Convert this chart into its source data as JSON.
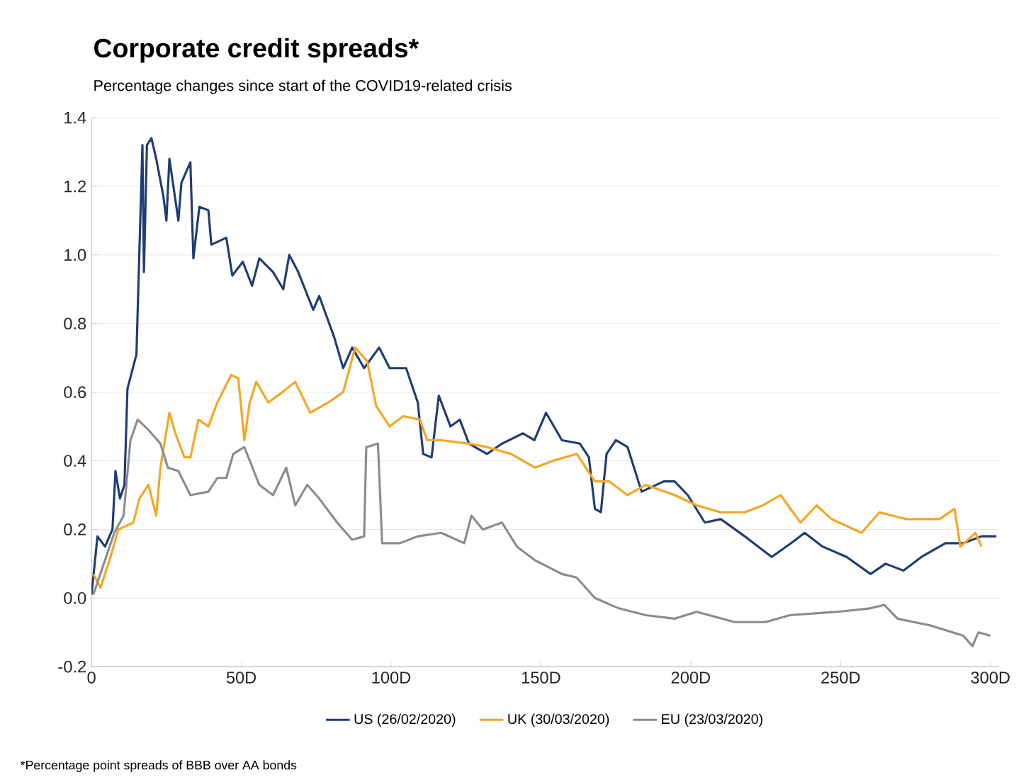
{
  "chart_data": {
    "type": "line",
    "title": "Corporate credit spreads*",
    "subtitle": "Percentage changes since start of the COVID19-related crisis",
    "annotations": [
      "*Percentage point spreads of BBB over AA bonds"
    ],
    "xlim": [
      0,
      303
    ],
    "xticks": [
      {
        "value": 0,
        "label": "0"
      },
      {
        "value": 50,
        "label": "50D"
      },
      {
        "value": 100,
        "label": "100D"
      },
      {
        "value": 150,
        "label": "150D"
      },
      {
        "value": 200,
        "label": "200D"
      },
      {
        "value": 250,
        "label": "250D"
      },
      {
        "value": 300,
        "label": "300D"
      }
    ],
    "ylim": [
      -0.2,
      1.4
    ],
    "yticks": [
      {
        "value": -0.2,
        "label": "-0.2"
      },
      {
        "value": 0,
        "label": "0.0"
      },
      {
        "value": 0.2,
        "label": "0.2"
      },
      {
        "value": 0.4,
        "label": "0.4"
      },
      {
        "value": 0.6,
        "label": "0.6"
      },
      {
        "value": 0.8,
        "label": "0.8"
      },
      {
        "value": 1.0,
        "label": "1.0"
      },
      {
        "value": 1.2,
        "label": "1.2"
      },
      {
        "value": 1.4,
        "label": "1.4"
      }
    ],
    "grid": "y",
    "legend": "bottom",
    "marker": "none",
    "series": [
      {
        "name": "US (26/02/2020)",
        "color": "#1f3d73",
        "x": [
          0,
          2,
          4.5,
          7,
          8,
          9.5,
          11,
          12,
          15,
          17,
          17.5,
          18.5,
          20,
          21.6,
          24,
          25,
          26,
          29,
          30,
          33,
          34,
          36,
          39,
          40,
          45,
          47,
          50.5,
          53.6,
          56,
          60.6,
          64,
          66,
          69,
          74,
          76,
          81,
          84,
          87,
          91,
          96,
          99.5,
          105,
          108.9,
          110.7,
          113.5,
          115.9,
          119.8,
          122.9,
          126,
          132,
          137,
          144,
          147.8,
          151.7,
          157,
          163,
          166,
          168,
          170,
          171.9,
          175,
          178.9,
          183.6,
          191,
          194.6,
          199,
          204.7,
          210,
          218,
          227,
          233.5,
          238,
          244,
          252,
          260,
          265,
          271,
          277,
          285,
          291,
          297,
          302
        ],
        "values": [
          0.01,
          0.18,
          0.15,
          0.2,
          0.37,
          0.29,
          0.33,
          0.61,
          0.71,
          1.32,
          0.95,
          1.32,
          1.34,
          1.28,
          1.17,
          1.1,
          1.28,
          1.1,
          1.21,
          1.27,
          0.99,
          1.14,
          1.13,
          1.03,
          1.05,
          0.94,
          0.98,
          0.91,
          0.99,
          0.95,
          0.9,
          1.0,
          0.95,
          0.84,
          0.88,
          0.76,
          0.67,
          0.73,
          0.67,
          0.73,
          0.67,
          0.67,
          0.57,
          0.42,
          0.41,
          0.59,
          0.5,
          0.52,
          0.45,
          0.42,
          0.45,
          0.48,
          0.46,
          0.54,
          0.46,
          0.45,
          0.41,
          0.26,
          0.25,
          0.42,
          0.46,
          0.44,
          0.31,
          0.34,
          0.34,
          0.3,
          0.22,
          0.23,
          0.18,
          0.12,
          0.16,
          0.19,
          0.15,
          0.12,
          0.07,
          0.1,
          0.08,
          0.12,
          0.16,
          0.16,
          0.18,
          0.18
        ]
      },
      {
        "name": "UK (30/03/2020)",
        "color": "#f5a623",
        "x": [
          0.6,
          3,
          6,
          9,
          14,
          16,
          19,
          21.6,
          23,
          26,
          28,
          31,
          33,
          35.7,
          39,
          42,
          46.6,
          49,
          51,
          52.8,
          55,
          59,
          63.7,
          68,
          73,
          79,
          84,
          88,
          92,
          95,
          99.5,
          104,
          109.6,
          112,
          116.7,
          126,
          132,
          140,
          148,
          154,
          162,
          168,
          172.7,
          178.9,
          185,
          194.6,
          202,
          210,
          218,
          224,
          230,
          236.6,
          242,
          247,
          257,
          263,
          272,
          283,
          288,
          290,
          295,
          297
        ],
        "values": [
          0.07,
          0.03,
          0.11,
          0.2,
          0.22,
          0.29,
          0.33,
          0.24,
          0.38,
          0.54,
          0.48,
          0.41,
          0.41,
          0.52,
          0.5,
          0.57,
          0.65,
          0.64,
          0.46,
          0.57,
          0.63,
          0.57,
          0.6,
          0.63,
          0.54,
          0.57,
          0.6,
          0.73,
          0.69,
          0.56,
          0.5,
          0.53,
          0.52,
          0.46,
          0.46,
          0.45,
          0.44,
          0.42,
          0.38,
          0.4,
          0.42,
          0.34,
          0.34,
          0.3,
          0.33,
          0.3,
          0.27,
          0.25,
          0.25,
          0.27,
          0.3,
          0.22,
          0.27,
          0.23,
          0.19,
          0.25,
          0.23,
          0.23,
          0.26,
          0.15,
          0.19,
          0.15
        ]
      },
      {
        "name": "EU (23/03/2020)",
        "color": "#8c8c8c",
        "x": [
          0.6,
          4.5,
          7.6,
          10.7,
          13,
          15.4,
          19,
          23,
          25.5,
          29,
          33,
          39,
          42,
          45,
          47.3,
          51,
          56,
          60.6,
          65,
          68,
          72,
          76,
          82,
          87,
          91,
          91.7,
          95.6,
          97,
          103,
          108.9,
          116.7,
          124.4,
          126.8,
          130.6,
          137,
          142,
          148,
          157,
          161.9,
          168,
          176,
          185,
          194.6,
          202,
          214.6,
          225,
          233,
          249,
          259.9,
          264.6,
          269,
          280,
          291,
          294,
          296,
          300
        ],
        "values": [
          0.01,
          0.11,
          0.19,
          0.24,
          0.46,
          0.52,
          0.49,
          0.45,
          0.38,
          0.37,
          0.3,
          0.31,
          0.35,
          0.35,
          0.42,
          0.44,
          0.33,
          0.3,
          0.38,
          0.27,
          0.33,
          0.29,
          0.22,
          0.17,
          0.18,
          0.44,
          0.45,
          0.16,
          0.16,
          0.18,
          0.19,
          0.16,
          0.24,
          0.2,
          0.22,
          0.15,
          0.11,
          0.07,
          0.06,
          0.0,
          -0.03,
          -0.05,
          -0.06,
          -0.04,
          -0.07,
          -0.07,
          -0.05,
          -0.04,
          -0.03,
          -0.02,
          -0.06,
          -0.08,
          -0.11,
          -0.14,
          -0.1,
          -0.11
        ]
      }
    ]
  }
}
